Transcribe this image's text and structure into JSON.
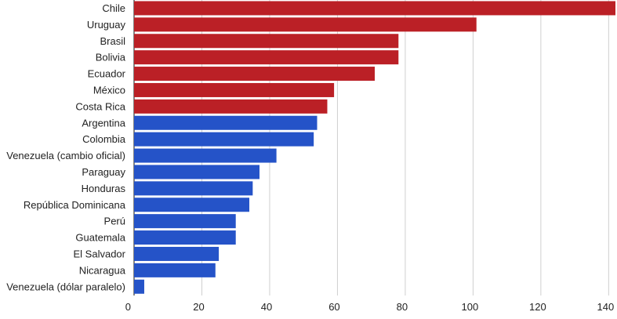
{
  "chart_data": {
    "type": "bar",
    "orientation": "horizontal",
    "categories": [
      "Chile",
      "Uruguay",
      "Brasil",
      "Bolivia",
      "Ecuador",
      "México",
      "Costa Rica",
      "Argentina",
      "Colombia",
      "Venezuela (cambio oficial)",
      "Paraguay",
      "Honduras",
      "República Dominicana",
      "Perú",
      "Guatemala",
      "El Salvador",
      "Nicaragua",
      "Venezuela (dólar paralelo)"
    ],
    "values": [
      142,
      101,
      78,
      78,
      71,
      59,
      57,
      54,
      53,
      42,
      37,
      35,
      34,
      30,
      30,
      25,
      24,
      3
    ],
    "bar_colors": [
      "#bb2026",
      "#bb2026",
      "#bb2026",
      "#bb2026",
      "#bb2026",
      "#bb2026",
      "#bb2026",
      "#2553c8",
      "#2553c8",
      "#2553c8",
      "#2553c8",
      "#2553c8",
      "#2553c8",
      "#2553c8",
      "#2553c8",
      "#2553c8",
      "#2553c8",
      "#2553c8"
    ],
    "x_ticks": [
      0,
      20,
      40,
      60,
      80,
      100,
      120,
      140
    ],
    "xlim": [
      0,
      142
    ],
    "grid": true,
    "title": "",
    "xlabel": "",
    "ylabel": ""
  }
}
